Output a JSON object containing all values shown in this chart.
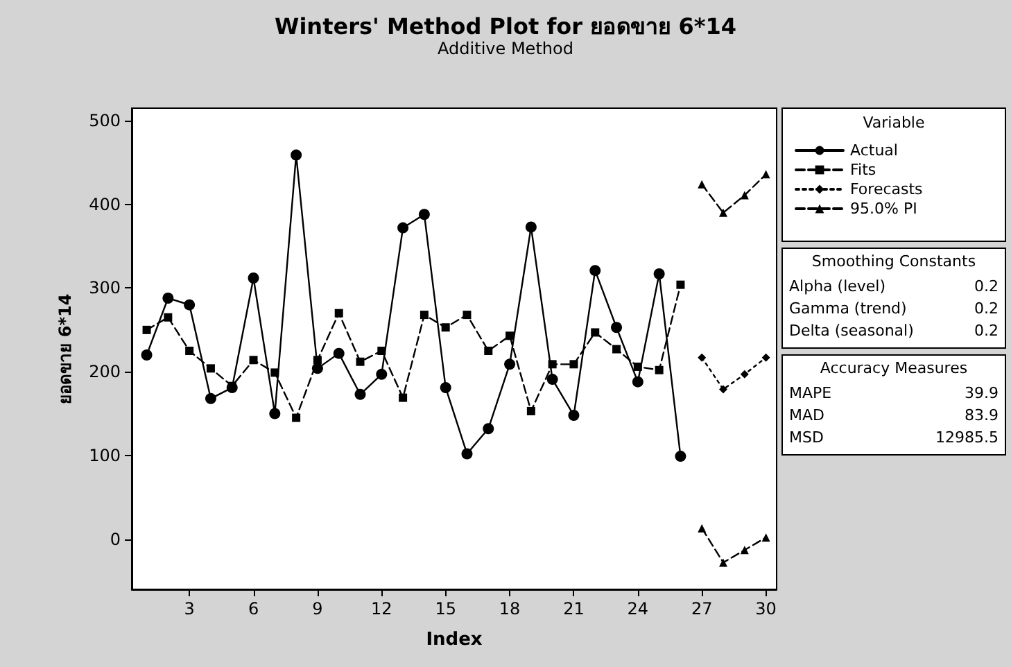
{
  "chart_data": {
    "type": "line",
    "title": "Winters' Method Plot for ยอดขาย 6*14",
    "subtitle": "Additive Method",
    "xlabel": "Index",
    "ylabel": "ยอดขาย 6*14",
    "legend_title": "Variable",
    "legend": "right",
    "grid": false,
    "xlim": [
      0.3,
      30.5
    ],
    "xticks": [
      3,
      6,
      9,
      12,
      15,
      18,
      21,
      24,
      27,
      30
    ],
    "ylim": [
      -60,
      515
    ],
    "yticks": [
      0,
      100,
      200,
      300,
      400,
      500
    ],
    "series": [
      {
        "name": "Actual",
        "color": "#000000",
        "marker": "circle",
        "line_style": "solid",
        "x": [
          1,
          2,
          3,
          4,
          5,
          6,
          7,
          8,
          9,
          10,
          11,
          12,
          13,
          14,
          15,
          16,
          17,
          18,
          19,
          20,
          21,
          22,
          23,
          24,
          25,
          26
        ],
        "values": [
          220,
          288,
          280,
          168,
          181,
          312,
          150,
          459,
          204,
          222,
          173,
          197,
          372,
          388,
          181,
          102,
          132,
          209,
          373,
          191,
          148,
          321,
          253,
          188,
          317,
          99
        ]
      },
      {
        "name": "Fits",
        "color": "#000000",
        "marker": "square",
        "line_style": "dashed",
        "x": [
          1,
          2,
          3,
          4,
          5,
          6,
          7,
          8,
          9,
          10,
          11,
          12,
          13,
          14,
          15,
          16,
          17,
          18,
          19,
          20,
          21,
          22,
          23,
          24,
          25,
          26
        ],
        "values": [
          250,
          265,
          225,
          204,
          183,
          214,
          199,
          145,
          214,
          270,
          212,
          225,
          169,
          268,
          253,
          268,
          225,
          243,
          153,
          209,
          209,
          247,
          227,
          206,
          202,
          304
        ]
      },
      {
        "name": "Forecasts",
        "color": "#000000",
        "marker": "diamond",
        "line_style": "dotted",
        "x": [
          27,
          28,
          29,
          30
        ],
        "values": [
          217,
          179,
          197,
          217
        ]
      },
      {
        "name": "95.0% PI",
        "color": "#000000",
        "marker": "triangle",
        "line_style": "dashed",
        "x": [
          27,
          28,
          29,
          30
        ],
        "values": [
          424,
          390,
          411,
          436
        ]
      },
      {
        "color": "#000000",
        "marker": "triangle",
        "line_style": "dashed",
        "x": [
          27,
          28,
          29,
          30
        ],
        "values": [
          13,
          -28,
          -13,
          2
        ]
      }
    ],
    "annotations": [
      "Smoothing Constants",
      "Alpha (level)\t0.2",
      "Gamma (trend)\t0.2",
      "Delta (seasonal)\t0.2",
      "Accuracy Measures",
      "MAPE\t39.9",
      "MAD\t83.9",
      "MSD\t12985.5"
    ]
  }
}
